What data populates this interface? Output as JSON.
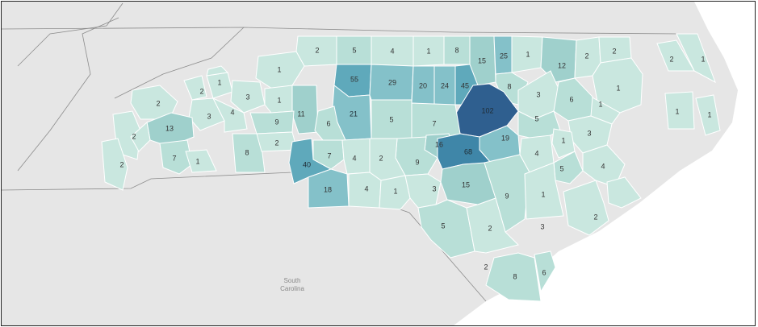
{
  "map": {
    "place_label_lines": [
      "South",
      "Carolina"
    ],
    "colors": {
      "background": "#e9e9e9",
      "terrain": "#dcdcdc",
      "ocean": "#ffffff",
      "scale": [
        "#c9e7df",
        "#b8dfd7",
        "#9fd0cc",
        "#84c1c9",
        "#5fa9bb",
        "#3f86a8",
        "#2f5f8f"
      ]
    },
    "counties": [
      {
        "id": "c1",
        "value": 2
      },
      {
        "id": "c2",
        "value": 5
      },
      {
        "id": "c3",
        "value": 4
      },
      {
        "id": "c4",
        "value": 1
      },
      {
        "id": "c5",
        "value": 8
      },
      {
        "id": "c6",
        "value": 15
      },
      {
        "id": "c7",
        "value": 25
      },
      {
        "id": "c8",
        "value": 1
      },
      {
        "id": "c9",
        "value": 12
      },
      {
        "id": "c10",
        "value": 2
      },
      {
        "id": "c11",
        "value": 2
      },
      {
        "id": "c12",
        "value": 2
      },
      {
        "id": "c13",
        "value": 1
      },
      {
        "id": "c14",
        "value": 1
      },
      {
        "id": "c15",
        "value": 55
      },
      {
        "id": "c16",
        "value": 29
      },
      {
        "id": "c17",
        "value": 20
      },
      {
        "id": "c18",
        "value": 24
      },
      {
        "id": "c19",
        "value": 45
      },
      {
        "id": "c20",
        "value": 8
      },
      {
        "id": "c21",
        "value": 1
      },
      {
        "id": "c22",
        "value": 1
      },
      {
        "id": "c23",
        "value": 1
      },
      {
        "id": "c24",
        "value": 2
      },
      {
        "id": "c25",
        "value": 1
      },
      {
        "id": "c26",
        "value": 3
      },
      {
        "id": "c27",
        "value": 1
      },
      {
        "id": "c28",
        "value": 11
      },
      {
        "id": "c29",
        "value": 21
      },
      {
        "id": "c30",
        "value": 102
      },
      {
        "id": "c31",
        "value": 3
      },
      {
        "id": "c32",
        "value": 6
      },
      {
        "id": "c33",
        "value": 1
      },
      {
        "id": "c34",
        "value": 2
      },
      {
        "id": "c35",
        "value": 3
      },
      {
        "id": "c36",
        "value": 4
      },
      {
        "id": "c37",
        "value": 9
      },
      {
        "id": "c38",
        "value": 6
      },
      {
        "id": "c39",
        "value": 5
      },
      {
        "id": "c40",
        "value": 7
      },
      {
        "id": "c41",
        "value": 5
      },
      {
        "id": "c42",
        "value": 3
      },
      {
        "id": "c43",
        "value": 13
      },
      {
        "id": "c44",
        "value": 2
      },
      {
        "id": "c45",
        "value": 19
      },
      {
        "id": "c46",
        "value": 16
      },
      {
        "id": "c47",
        "value": 1
      },
      {
        "id": "c48",
        "value": 8
      },
      {
        "id": "c49",
        "value": 2
      },
      {
        "id": "c50",
        "value": 4
      },
      {
        "id": "c51",
        "value": 2
      },
      {
        "id": "c52",
        "value": 7
      },
      {
        "id": "c53",
        "value": 1
      },
      {
        "id": "c54",
        "value": 68
      },
      {
        "id": "c55",
        "value": 40
      },
      {
        "id": "c56",
        "value": 7
      },
      {
        "id": "c57",
        "value": 4
      },
      {
        "id": "c58",
        "value": 9
      },
      {
        "id": "c59",
        "value": 5
      },
      {
        "id": "c60",
        "value": 4
      },
      {
        "id": "c61",
        "value": 2
      },
      {
        "id": "c62",
        "value": 18
      },
      {
        "id": "c63",
        "value": 4
      },
      {
        "id": "c64",
        "value": 1
      },
      {
        "id": "c65",
        "value": 3
      },
      {
        "id": "c66",
        "value": 15
      },
      {
        "id": "c67",
        "value": 9
      },
      {
        "id": "c68",
        "value": 1
      },
      {
        "id": "c69",
        "value": 5
      },
      {
        "id": "c70",
        "value": 2
      },
      {
        "id": "c71",
        "value": 2
      },
      {
        "id": "c72",
        "value": 2
      },
      {
        "id": "c73",
        "value": 8
      },
      {
        "id": "c74",
        "value": 6
      },
      {
        "id": "c75",
        "value": 3
      },
      {
        "id": "c76",
        "value": 1
      }
    ]
  }
}
